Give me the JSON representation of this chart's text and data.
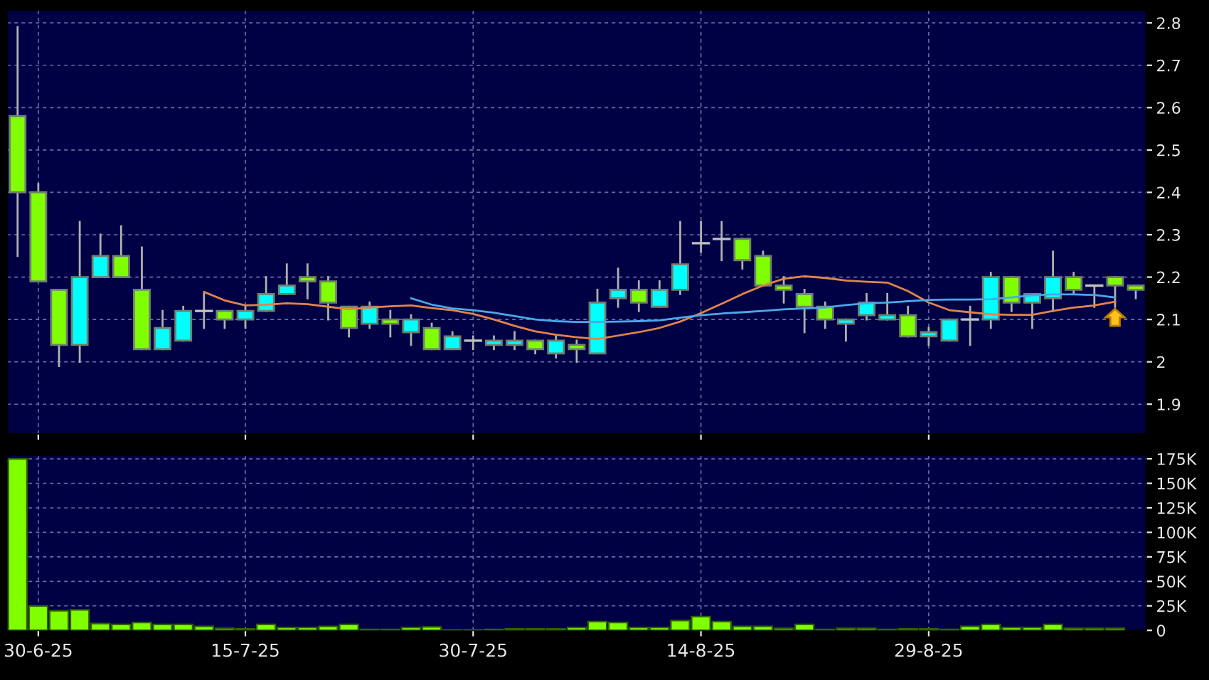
{
  "chart_data": [
    {
      "type": "candlestick",
      "categories": [
        null,
        null,
        null,
        null,
        null,
        null,
        null,
        null,
        null,
        null,
        null,
        null,
        null,
        null,
        null,
        null,
        null,
        null,
        null,
        null,
        null,
        null,
        null,
        null,
        null,
        null,
        null,
        null,
        null,
        null,
        null,
        null,
        null,
        null,
        null,
        null,
        null,
        null,
        null,
        null,
        null,
        null,
        null,
        null,
        null,
        null,
        null,
        null,
        null,
        null,
        null,
        null,
        null,
        null,
        null
      ],
      "ohlc": [
        [
          2.58,
          2.79,
          2.25,
          2.4
        ],
        [
          2.4,
          2.42,
          2.19,
          2.19
        ],
        [
          2.17,
          2.17,
          1.99,
          2.04
        ],
        [
          2.04,
          2.33,
          2.0,
          2.2
        ],
        [
          2.2,
          2.3,
          2.2,
          2.25
        ],
        [
          2.25,
          2.32,
          2.2,
          2.2
        ],
        [
          2.17,
          2.27,
          2.03,
          2.03
        ],
        [
          2.03,
          2.12,
          2.03,
          2.08
        ],
        [
          2.05,
          2.13,
          2.05,
          2.12
        ],
        [
          2.12,
          2.16,
          2.08,
          2.12
        ],
        [
          2.12,
          2.12,
          2.08,
          2.1
        ],
        [
          2.1,
          2.13,
          2.08,
          2.12
        ],
        [
          2.12,
          2.2,
          2.12,
          2.16
        ],
        [
          2.16,
          2.23,
          2.16,
          2.18
        ],
        [
          2.2,
          2.23,
          2.15,
          2.19
        ],
        [
          2.19,
          2.2,
          2.1,
          2.14
        ],
        [
          2.13,
          2.13,
          2.06,
          2.08
        ],
        [
          2.09,
          2.14,
          2.08,
          2.13
        ],
        [
          2.1,
          2.12,
          2.06,
          2.09
        ],
        [
          2.07,
          2.11,
          2.04,
          2.1
        ],
        [
          2.08,
          2.09,
          2.03,
          2.03
        ],
        [
          2.03,
          2.07,
          2.03,
          2.06
        ],
        [
          2.05,
          2.06,
          2.03,
          2.05
        ],
        [
          2.04,
          2.06,
          2.03,
          2.05
        ],
        [
          2.04,
          2.07,
          2.03,
          2.05
        ],
        [
          2.05,
          2.05,
          2.02,
          2.03
        ],
        [
          2.02,
          2.06,
          2.01,
          2.05
        ],
        [
          2.04,
          2.05,
          2.0,
          2.03
        ],
        [
          2.02,
          2.17,
          2.02,
          2.14
        ],
        [
          2.15,
          2.22,
          2.13,
          2.17
        ],
        [
          2.17,
          2.19,
          2.12,
          2.14
        ],
        [
          2.13,
          2.19,
          2.13,
          2.17
        ],
        [
          2.17,
          2.33,
          2.16,
          2.23
        ],
        [
          2.28,
          2.33,
          2.26,
          2.28
        ],
        [
          2.29,
          2.33,
          2.24,
          2.29
        ],
        [
          2.29,
          2.29,
          2.22,
          2.24
        ],
        [
          2.25,
          2.26,
          2.18,
          2.18
        ],
        [
          2.18,
          2.2,
          2.14,
          2.17
        ],
        [
          2.16,
          2.17,
          2.07,
          2.13
        ],
        [
          2.13,
          2.14,
          2.08,
          2.1
        ],
        [
          2.09,
          2.1,
          2.05,
          2.1
        ],
        [
          2.11,
          2.16,
          2.1,
          2.14
        ],
        [
          2.1,
          2.16,
          2.1,
          2.11
        ],
        [
          2.11,
          2.13,
          2.06,
          2.06
        ],
        [
          2.06,
          2.08,
          2.04,
          2.07
        ],
        [
          2.05,
          2.1,
          2.05,
          2.1
        ],
        [
          2.1,
          2.13,
          2.04,
          2.1
        ],
        [
          2.1,
          2.21,
          2.08,
          2.2
        ],
        [
          2.2,
          2.2,
          2.12,
          2.14
        ],
        [
          2.14,
          2.16,
          2.08,
          2.16
        ],
        [
          2.15,
          2.26,
          2.12,
          2.2
        ],
        [
          2.2,
          2.21,
          2.16,
          2.17
        ],
        [
          2.18,
          2.18,
          2.13,
          2.18
        ],
        [
          2.2,
          2.2,
          2.13,
          2.18
        ],
        [
          2.18,
          2.18,
          2.15,
          2.17
        ]
      ],
      "colors": [
        "#80ff00",
        "#80ff00",
        "#80ff00",
        "#00ffff",
        "#00ffff",
        "#80ff00",
        "#80ff00",
        "#00ffff",
        "#00ffff",
        "#c0c0c0",
        "#80ff00",
        "#00ffff",
        "#00ffff",
        "#00ffff",
        "#80ff00",
        "#80ff00",
        "#80ff00",
        "#00ffff",
        "#80ff00",
        "#00ffff",
        "#80ff00",
        "#00ffff",
        "#c0c0c0",
        "#00ffff",
        "#00ffff",
        "#80ff00",
        "#00ffff",
        "#80ff00",
        "#00ffff",
        "#00ffff",
        "#80ff00",
        "#00ffff",
        "#00ffff",
        "#c0c0c0",
        "#c0c0c0",
        "#80ff00",
        "#80ff00",
        "#80ff00",
        "#80ff00",
        "#80ff00",
        "#00ffff",
        "#00ffff",
        "#00ffff",
        "#80ff00",
        "#00ffff",
        "#00ffff",
        "#c0c0c0",
        "#00ffff",
        "#80ff00",
        "#00ffff",
        "#00ffff",
        "#80ff00",
        "#c0c0c0",
        "#80ff00",
        "#80ff00"
      ],
      "series": [
        {
          "type": "line",
          "color": "#e0844c",
          "values": [
            null,
            null,
            null,
            null,
            null,
            null,
            null,
            null,
            null,
            2.165,
            2.145,
            2.133,
            2.135,
            2.138,
            2.136,
            2.13,
            2.124,
            2.128,
            2.131,
            2.133,
            2.127,
            2.122,
            2.113,
            2.1,
            2.085,
            2.072,
            2.064,
            2.058,
            2.054,
            2.062,
            2.07,
            2.08,
            2.095,
            2.115,
            2.137,
            2.16,
            2.18,
            2.196,
            2.202,
            2.198,
            2.192,
            2.189,
            2.187,
            2.167,
            2.14,
            2.122,
            2.117,
            2.112,
            2.111,
            2.111,
            2.12,
            2.128,
            2.133,
            2.142,
            null
          ]
        },
        {
          "type": "line",
          "color": "#4aa8e8",
          "values": [
            null,
            null,
            null,
            null,
            null,
            null,
            null,
            null,
            null,
            null,
            null,
            null,
            null,
            null,
            null,
            null,
            null,
            null,
            null,
            2.15,
            2.135,
            2.126,
            2.122,
            2.116,
            2.108,
            2.1,
            2.096,
            2.094,
            2.094,
            2.095,
            2.096,
            2.098,
            2.104,
            2.11,
            2.114,
            2.117,
            2.12,
            2.124,
            2.126,
            2.128,
            2.134,
            2.138,
            2.14,
            2.143,
            2.146,
            2.147,
            2.147,
            2.148,
            2.152,
            2.157,
            2.159,
            2.159,
            2.158,
            2.152,
            null
          ]
        }
      ],
      "ylim": [
        1.83,
        2.83
      ],
      "yticks": [
        1.9,
        2,
        2.1,
        2.2,
        2.3,
        2.4,
        2.5,
        2.6,
        2.7,
        2.8
      ],
      "grid": true,
      "tick_labels": "y"
    },
    {
      "type": "bar",
      "categories": [
        null,
        "30-6-25",
        null,
        null,
        null,
        null,
        null,
        null,
        null,
        null,
        null,
        "15-7-25",
        null,
        null,
        null,
        null,
        null,
        null,
        null,
        null,
        null,
        null,
        "30-7-25",
        null,
        null,
        null,
        null,
        null,
        null,
        null,
        null,
        null,
        null,
        "14-8-25",
        null,
        null,
        null,
        null,
        null,
        null,
        null,
        null,
        null,
        null,
        "29-8-25",
        null,
        null,
        null,
        null,
        null,
        null,
        null,
        null,
        null,
        null
      ],
      "values": [
        175,
        25,
        20,
        21,
        7,
        6,
        8,
        6,
        6,
        4,
        2,
        1.5,
        6,
        3,
        3,
        4,
        6,
        1,
        1,
        3,
        3.5,
        0.5,
        0.5,
        1,
        1.5,
        1.5,
        1.5,
        3,
        9,
        8,
        3,
        3,
        10,
        14,
        9,
        4,
        4,
        2,
        6,
        1,
        2,
        2,
        1,
        1.5,
        1.5,
        1,
        4,
        6,
        3,
        3,
        6,
        2,
        2,
        2,
        null
      ],
      "color": "#80ff00",
      "ylim": [
        0,
        179
      ],
      "yticks": [
        0,
        {
          "value": 25,
          "label": "25K"
        },
        {
          "value": 50,
          "label": "50K"
        },
        {
          "value": 75,
          "label": "75K"
        },
        {
          "value": 100,
          "label": "100K"
        },
        {
          "value": 125,
          "label": "125K"
        },
        {
          "value": 150,
          "label": "150K"
        },
        {
          "value": 175,
          "label": "175K"
        }
      ],
      "grid": true
    }
  ]
}
